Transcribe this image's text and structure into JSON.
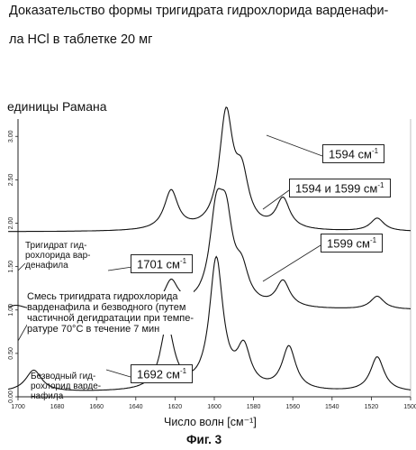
{
  "header": {
    "line1": "Доказательство формы тригидрата гидрохлорида варденафи-",
    "line2": "ла HCl в таблетке 20 мг"
  },
  "chart_data": {
    "type": "line",
    "title": "",
    "ylabel": "единицы Рамана",
    "xlabel": "Число волн [см⁻¹]",
    "xlim": [
      1700,
      1500
    ],
    "x_reversed": true,
    "x_ticks": [
      "1700",
      "1680",
      "1660",
      "1640",
      "1620",
      "1600",
      "1580",
      "1560",
      "1540",
      "1520",
      "1500"
    ],
    "y_ticks": [
      "3.00",
      "2.50",
      "2.00",
      "1.50",
      "1.00",
      "0.50",
      "0.00"
    ],
    "ylim": [
      0,
      3.2
    ],
    "series": [
      {
        "name": "Тригидрат гидрохлорида варденафила",
        "baseline_offset": 1.9,
        "peaks": [
          {
            "x": 1622,
            "y": 0.45
          },
          {
            "x": 1594,
            "y": 1.3
          },
          {
            "x": 1586,
            "y": 0.55
          },
          {
            "x": 1565,
            "y": 0.35
          },
          {
            "x": 1517,
            "y": 0.15
          }
        ]
      },
      {
        "name": "Смесь тригидрата гидрохлорида варденафила и безводного (путем частичной дегидратации при температуре 70°С в течение 7 мин",
        "baseline_offset": 1.0,
        "peaks": [
          {
            "x": 1701,
            "y": 0.05
          },
          {
            "x": 1622,
            "y": 0.3
          },
          {
            "x": 1599,
            "y": 0.95
          },
          {
            "x": 1594,
            "y": 0.85
          },
          {
            "x": 1586,
            "y": 0.35
          },
          {
            "x": 1565,
            "y": 0.3
          },
          {
            "x": 1517,
            "y": 0.15
          }
        ]
      },
      {
        "name": "Безводный гидрохлорид варденафила",
        "baseline_offset": 0.05,
        "peaks": [
          {
            "x": 1692,
            "y": 0.25
          },
          {
            "x": 1624,
            "y": 0.75
          },
          {
            "x": 1599,
            "y": 1.5
          },
          {
            "x": 1585,
            "y": 0.45
          },
          {
            "x": 1562,
            "y": 0.5
          },
          {
            "x": 1517,
            "y": 0.4
          }
        ]
      }
    ],
    "annotations": [
      {
        "text": "1594 см",
        "sup": "-1",
        "x": 1594
      },
      {
        "text": "1594 и 1599 см",
        "sup": "-1",
        "x": 1597
      },
      {
        "text": "1599 см",
        "sup": "-1",
        "x": 1599
      },
      {
        "text": "1701 см",
        "sup": "-1",
        "x": 1701
      },
      {
        "text": "1692 см",
        "sup": "-1",
        "x": 1692
      }
    ],
    "grid": false
  },
  "labels": {
    "trihydrate": "Тригидрат гид-\nрохлорида вар-\nденафила",
    "mixture": "Смесь тригидрата гидрохлорида\nварденафила и безводного (путем\nчастичной дегидратации при темпе-\nратуре 70°С в течение 7 мин",
    "anhydrous": "Безводный гид-\nрохлорид варде-\nнафила"
  },
  "figure_caption": "Фиг. 3"
}
